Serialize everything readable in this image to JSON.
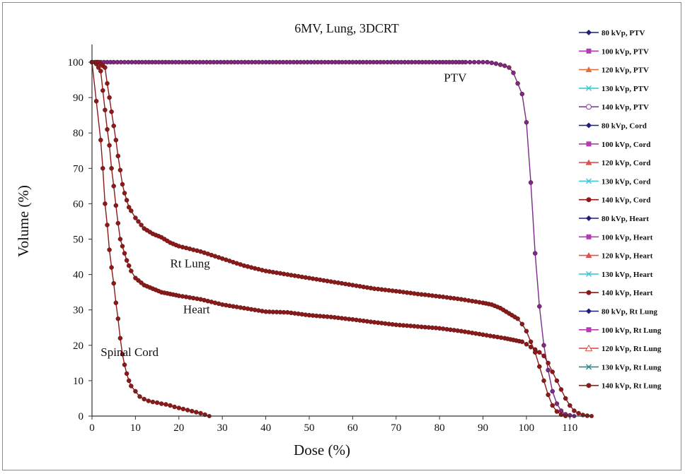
{
  "chart_data": {
    "type": "line",
    "title": "6MV, Lung, 3DCRT",
    "xlabel": "Dose (%)",
    "ylabel": "Volume (%)",
    "xlim": [
      0,
      115
    ],
    "ylim": [
      0,
      105
    ],
    "xticks": [
      "0",
      "10",
      "20",
      "30",
      "40",
      "50",
      "60",
      "70",
      "80",
      "90",
      "100",
      "110"
    ],
    "yticks": [
      "0",
      "10",
      "20",
      "30",
      "40",
      "50",
      "60",
      "70",
      "80",
      "90",
      "100"
    ],
    "legend_position": "right",
    "annotations": [
      {
        "text": "PTV",
        "x": 81,
        "y": 94.5
      },
      {
        "text": "Rt Lung",
        "x": 18,
        "y": 42
      },
      {
        "text": "Heart",
        "x": 21,
        "y": 29
      },
      {
        "text": "Spinal Cord",
        "x": 2,
        "y": 17
      }
    ],
    "series_style": {
      "PTV": {
        "color": "#7a2a8a"
      },
      "Cord": {
        "color": "#8b1a1a"
      },
      "Heart": {
        "color": "#8b1a1a"
      },
      "Rt Lung": {
        "color": "#8b1a1a"
      }
    },
    "legend": [
      {
        "name": "80 kVp, PTV",
        "color": "#1f1f7a",
        "marker": "diamond"
      },
      {
        "name": "100 kVp, PTV",
        "color": "#b23cb2",
        "marker": "square"
      },
      {
        "name": "120 kVp, PTV",
        "color": "#e07040",
        "marker": "triangle"
      },
      {
        "name": "130 kVp, PTV",
        "color": "#3cc8d8",
        "marker": "x"
      },
      {
        "name": "140 kVp, PTV",
        "color": "#8a3aa0",
        "marker": "circle-open"
      },
      {
        "name": "80 kVp, Cord",
        "color": "#1f1f7a",
        "marker": "diamond"
      },
      {
        "name": "100 kVp, Cord",
        "color": "#b23cb2",
        "marker": "square"
      },
      {
        "name": "120 kVp, Cord",
        "color": "#e05050",
        "marker": "triangle"
      },
      {
        "name": "130 kVp, Cord",
        "color": "#3cc8d8",
        "marker": "x"
      },
      {
        "name": "140 kVp, Cord",
        "color": "#8b1a1a",
        "marker": "circle"
      },
      {
        "name": "80 kVp, Heart",
        "color": "#1f1f7a",
        "marker": "diamond"
      },
      {
        "name": "100 kVp, Heart",
        "color": "#b23cb2",
        "marker": "square"
      },
      {
        "name": "120 kVp, Heart",
        "color": "#e05050",
        "marker": "triangle"
      },
      {
        "name": "130 kVp, Heart",
        "color": "#3cc8d8",
        "marker": "x"
      },
      {
        "name": "140 kVp, Heart",
        "color": "#8b1a1a",
        "marker": "circle"
      },
      {
        "name": "80 kVp, Rt Lung",
        "color": "#1f1f7a",
        "marker": "diamond"
      },
      {
        "name": "100 kVp, Rt Lung",
        "color": "#b23cb2",
        "marker": "square"
      },
      {
        "name": "120 kVp, Rt Lung",
        "color": "#e05050",
        "marker": "triangle-open"
      },
      {
        "name": "130 kVp, Rt Lung",
        "color": "#2a8a8a",
        "marker": "x"
      },
      {
        "name": "140 kVp, Rt Lung",
        "color": "#8b1a1a",
        "marker": "circle"
      }
    ],
    "series": [
      {
        "name": "PTV",
        "x": [
          0,
          2,
          5,
          10,
          20,
          40,
          60,
          80,
          86,
          87,
          88,
          89,
          90,
          91,
          92,
          93,
          94,
          95,
          96,
          97,
          98,
          99,
          100,
          101,
          102,
          103,
          104,
          105,
          106,
          107,
          108,
          109,
          110,
          111
        ],
        "y": [
          100,
          100,
          100,
          100,
          100,
          100,
          100,
          100,
          100,
          100,
          100,
          100,
          100,
          100,
          99.8,
          99.6,
          99.3,
          99,
          98.5,
          97,
          94,
          91,
          83,
          66,
          46,
          31,
          20,
          13,
          7,
          3.5,
          1.5,
          0.5,
          0.2,
          0
        ]
      },
      {
        "name": "Cord",
        "x": [
          0,
          1,
          2,
          2.5,
          3,
          3.5,
          4,
          4.5,
          5,
          5.5,
          6,
          6.5,
          7,
          7.5,
          8,
          8.5,
          9,
          10,
          11,
          12,
          13,
          14,
          15,
          16,
          17,
          18,
          19,
          20,
          21,
          22,
          23,
          24,
          25,
          26,
          27
        ],
        "y": [
          100,
          89,
          78,
          70,
          60,
          54,
          47,
          42,
          37.5,
          32,
          27.5,
          22,
          17.5,
          14.5,
          12,
          10,
          8.5,
          7,
          5.5,
          4.8,
          4.3,
          4,
          3.8,
          3.5,
          3.3,
          3,
          2.6,
          2.3,
          2,
          1.7,
          1.4,
          1.1,
          0.8,
          0.4,
          0
        ]
      },
      {
        "name": "Heart",
        "x": [
          0,
          1,
          1.5,
          2,
          2.5,
          3,
          3.5,
          4,
          4.5,
          5,
          5.5,
          6,
          6.5,
          7,
          7.5,
          8,
          8.5,
          9,
          10,
          12,
          14,
          16,
          18,
          20,
          25,
          30,
          35,
          40,
          45,
          50,
          55,
          60,
          65,
          70,
          75,
          80,
          85,
          90,
          95,
          97,
          99,
          100,
          101,
          102,
          103,
          104,
          105,
          106,
          107,
          108,
          109,
          110,
          111,
          112,
          113,
          114,
          115
        ],
        "y": [
          100,
          99.5,
          98.5,
          97.5,
          92,
          86.5,
          81,
          76.5,
          70,
          65,
          59.5,
          54.5,
          50,
          48,
          46,
          44,
          42.5,
          41,
          39,
          37,
          36,
          35,
          34.5,
          34,
          33,
          31.5,
          30.5,
          29.5,
          29.3,
          28.5,
          28,
          27.3,
          26.5,
          25.8,
          25.3,
          24.8,
          24,
          23,
          22,
          21.5,
          21,
          20.3,
          19.5,
          18.8,
          18,
          17,
          15,
          12.5,
          10,
          7.5,
          5,
          3,
          1.5,
          0.8,
          0.3,
          0.1,
          0
        ]
      },
      {
        "name": "Rt Lung",
        "x": [
          0,
          1,
          1.5,
          2,
          2.5,
          3,
          3.5,
          4,
          4.5,
          5,
          5.5,
          6,
          6.5,
          7,
          7.5,
          8,
          8.5,
          9,
          10,
          12,
          14,
          16,
          18,
          20,
          25,
          30,
          35,
          40,
          45,
          50,
          55,
          60,
          65,
          70,
          75,
          80,
          85,
          90,
          92,
          94,
          96,
          98,
          99,
          100,
          101,
          102,
          103,
          104,
          105,
          106,
          107,
          108,
          109
        ],
        "y": [
          100,
          100,
          100,
          99.5,
          99,
          98.5,
          94,
          90,
          86,
          82,
          78,
          73.5,
          69.5,
          65.5,
          63,
          61,
          59,
          58,
          56,
          53,
          51.5,
          50.5,
          49,
          48,
          46.5,
          44.5,
          42.5,
          41,
          40,
          39,
          38,
          37,
          36,
          35.3,
          34.5,
          33.8,
          33,
          32,
          31.5,
          30.5,
          29,
          27.5,
          26,
          24,
          21,
          18,
          14,
          10,
          6,
          3,
          1.3,
          0.4,
          0
        ]
      }
    ]
  }
}
